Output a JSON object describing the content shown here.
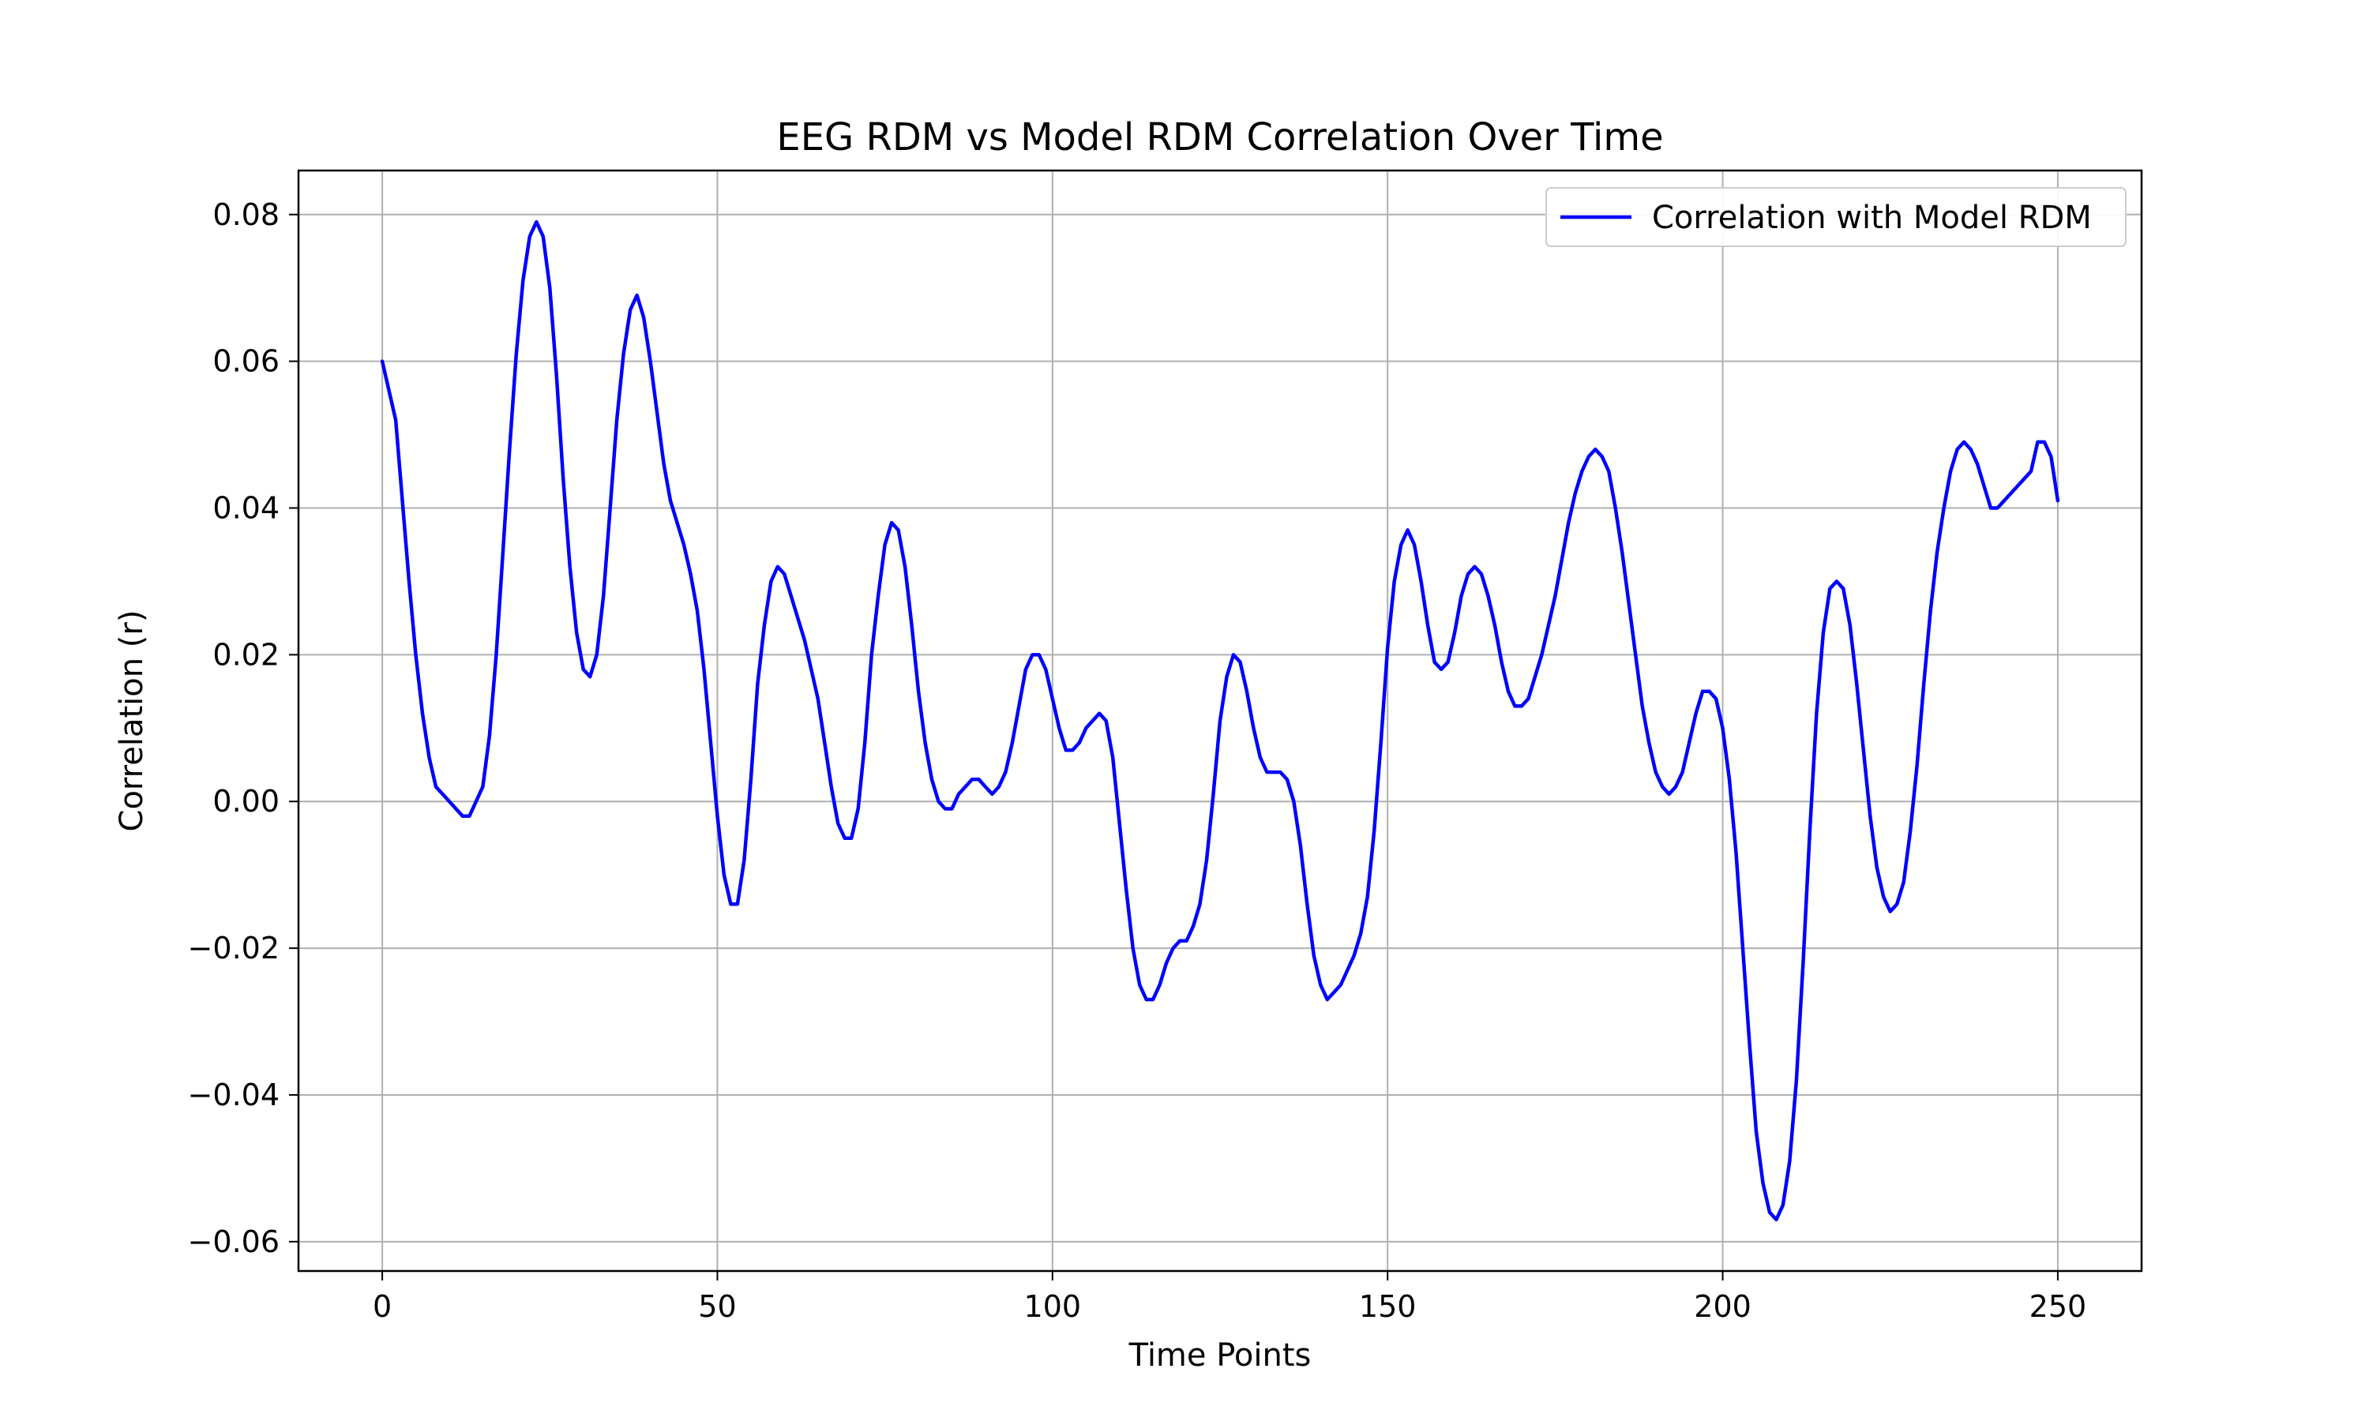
{
  "chart_data": {
    "type": "line",
    "title": "EEG RDM vs Model RDM Correlation Over Time",
    "xlabel": "Time Points",
    "ylabel": "Correlation (r)",
    "xlim": [
      -12.5,
      262.5
    ],
    "ylim": [
      -0.064,
      0.086
    ],
    "xticks": [
      0,
      50,
      100,
      150,
      200,
      250
    ],
    "xtick_labels": [
      "0",
      "50",
      "100",
      "150",
      "200",
      "250"
    ],
    "yticks": [
      -0.06,
      -0.04,
      -0.02,
      0.0,
      0.02,
      0.04,
      0.06,
      0.08
    ],
    "ytick_labels": [
      "−0.06",
      "−0.04",
      "−0.02",
      "0.00",
      "0.02",
      "0.04",
      "0.06",
      "0.08"
    ],
    "grid": true,
    "legend_position": "top-right",
    "series": [
      {
        "name": "Correlation with Model RDM",
        "color": "#0000ff",
        "points": [
          [
            0,
            0.06
          ],
          [
            2,
            0.052
          ],
          [
            4,
            0.03
          ],
          [
            5,
            0.02
          ],
          [
            6,
            0.012
          ],
          [
            7,
            0.006
          ],
          [
            8,
            0.002
          ],
          [
            10,
            0.0
          ],
          [
            12,
            -0.002
          ],
          [
            13,
            -0.002
          ],
          [
            14,
            0.0
          ],
          [
            15,
            0.002
          ],
          [
            16,
            0.009
          ],
          [
            17,
            0.02
          ],
          [
            18,
            0.034
          ],
          [
            19,
            0.048
          ],
          [
            20,
            0.061
          ],
          [
            21,
            0.071
          ],
          [
            22,
            0.077
          ],
          [
            23,
            0.079
          ],
          [
            24,
            0.077
          ],
          [
            25,
            0.07
          ],
          [
            26,
            0.058
          ],
          [
            27,
            0.044
          ],
          [
            28,
            0.032
          ],
          [
            29,
            0.023
          ],
          [
            30,
            0.018
          ],
          [
            31,
            0.017
          ],
          [
            32,
            0.02
          ],
          [
            33,
            0.028
          ],
          [
            34,
            0.04
          ],
          [
            35,
            0.052
          ],
          [
            36,
            0.061
          ],
          [
            37,
            0.067
          ],
          [
            38,
            0.069
          ],
          [
            39,
            0.066
          ],
          [
            40,
            0.06
          ],
          [
            41,
            0.053
          ],
          [
            42,
            0.046
          ],
          [
            43,
            0.041
          ],
          [
            44,
            0.038
          ],
          [
            45,
            0.035
          ],
          [
            46,
            0.031
          ],
          [
            47,
            0.026
          ],
          [
            48,
            0.018
          ],
          [
            49,
            0.008
          ],
          [
            50,
            -0.002
          ],
          [
            51,
            -0.01
          ],
          [
            52,
            -0.014
          ],
          [
            53,
            -0.014
          ],
          [
            54,
            -0.008
          ],
          [
            55,
            0.003
          ],
          [
            56,
            0.016
          ],
          [
            57,
            0.024
          ],
          [
            58,
            0.03
          ],
          [
            59,
            0.032
          ],
          [
            60,
            0.031
          ],
          [
            61,
            0.028
          ],
          [
            62,
            0.025
          ],
          [
            63,
            0.022
          ],
          [
            64,
            0.018
          ],
          [
            65,
            0.014
          ],
          [
            66,
            0.008
          ],
          [
            67,
            0.002
          ],
          [
            68,
            -0.003
          ],
          [
            69,
            -0.005
          ],
          [
            70,
            -0.005
          ],
          [
            71,
            -0.001
          ],
          [
            72,
            0.008
          ],
          [
            73,
            0.02
          ],
          [
            74,
            0.028
          ],
          [
            75,
            0.035
          ],
          [
            76,
            0.038
          ],
          [
            77,
            0.037
          ],
          [
            78,
            0.032
          ],
          [
            79,
            0.024
          ],
          [
            80,
            0.015
          ],
          [
            81,
            0.008
          ],
          [
            82,
            0.003
          ],
          [
            83,
            0.0
          ],
          [
            84,
            -0.001
          ],
          [
            85,
            -0.001
          ],
          [
            86,
            0.001
          ],
          [
            87,
            0.002
          ],
          [
            88,
            0.003
          ],
          [
            89,
            0.003
          ],
          [
            90,
            0.002
          ],
          [
            91,
            0.001
          ],
          [
            92,
            0.002
          ],
          [
            93,
            0.004
          ],
          [
            94,
            0.008
          ],
          [
            95,
            0.013
          ],
          [
            96,
            0.018
          ],
          [
            97,
            0.02
          ],
          [
            98,
            0.02
          ],
          [
            99,
            0.018
          ],
          [
            100,
            0.014
          ],
          [
            101,
            0.01
          ],
          [
            102,
            0.007
          ],
          [
            103,
            0.007
          ],
          [
            104,
            0.008
          ],
          [
            105,
            0.01
          ],
          [
            106,
            0.011
          ],
          [
            107,
            0.012
          ],
          [
            108,
            0.011
          ],
          [
            109,
            0.006
          ],
          [
            110,
            -0.003
          ],
          [
            111,
            -0.012
          ],
          [
            112,
            -0.02
          ],
          [
            113,
            -0.025
          ],
          [
            114,
            -0.027
          ],
          [
            115,
            -0.027
          ],
          [
            116,
            -0.025
          ],
          [
            117,
            -0.022
          ],
          [
            118,
            -0.02
          ],
          [
            119,
            -0.019
          ],
          [
            120,
            -0.019
          ],
          [
            121,
            -0.017
          ],
          [
            122,
            -0.014
          ],
          [
            123,
            -0.008
          ],
          [
            124,
            0.001
          ],
          [
            125,
            0.011
          ],
          [
            126,
            0.017
          ],
          [
            127,
            0.02
          ],
          [
            128,
            0.019
          ],
          [
            129,
            0.015
          ],
          [
            130,
            0.01
          ],
          [
            131,
            0.006
          ],
          [
            132,
            0.004
          ],
          [
            133,
            0.004
          ],
          [
            134,
            0.004
          ],
          [
            135,
            0.003
          ],
          [
            136,
            0.0
          ],
          [
            137,
            -0.006
          ],
          [
            138,
            -0.014
          ],
          [
            139,
            -0.021
          ],
          [
            140,
            -0.025
          ],
          [
            141,
            -0.027
          ],
          [
            142,
            -0.026
          ],
          [
            143,
            -0.025
          ],
          [
            144,
            -0.023
          ],
          [
            145,
            -0.021
          ],
          [
            146,
            -0.018
          ],
          [
            147,
            -0.013
          ],
          [
            148,
            -0.004
          ],
          [
            149,
            0.008
          ],
          [
            150,
            0.021
          ],
          [
            151,
            0.03
          ],
          [
            152,
            0.035
          ],
          [
            153,
            0.037
          ],
          [
            154,
            0.035
          ],
          [
            155,
            0.03
          ],
          [
            156,
            0.024
          ],
          [
            157,
            0.019
          ],
          [
            158,
            0.018
          ],
          [
            159,
            0.019
          ],
          [
            160,
            0.023
          ],
          [
            161,
            0.028
          ],
          [
            162,
            0.031
          ],
          [
            163,
            0.032
          ],
          [
            164,
            0.031
          ],
          [
            165,
            0.028
          ],
          [
            166,
            0.024
          ],
          [
            167,
            0.019
          ],
          [
            168,
            0.015
          ],
          [
            169,
            0.013
          ],
          [
            170,
            0.013
          ],
          [
            171,
            0.014
          ],
          [
            172,
            0.017
          ],
          [
            173,
            0.02
          ],
          [
            174,
            0.024
          ],
          [
            175,
            0.028
          ],
          [
            176,
            0.033
          ],
          [
            177,
            0.038
          ],
          [
            178,
            0.042
          ],
          [
            179,
            0.045
          ],
          [
            180,
            0.047
          ],
          [
            181,
            0.048
          ],
          [
            182,
            0.047
          ],
          [
            183,
            0.045
          ],
          [
            184,
            0.04
          ],
          [
            185,
            0.034
          ],
          [
            186,
            0.027
          ],
          [
            187,
            0.02
          ],
          [
            188,
            0.013
          ],
          [
            189,
            0.008
          ],
          [
            190,
            0.004
          ],
          [
            191,
            0.002
          ],
          [
            192,
            0.001
          ],
          [
            193,
            0.002
          ],
          [
            194,
            0.004
          ],
          [
            195,
            0.008
          ],
          [
            196,
            0.012
          ],
          [
            197,
            0.015
          ],
          [
            198,
            0.015
          ],
          [
            199,
            0.014
          ],
          [
            200,
            0.01
          ],
          [
            201,
            0.003
          ],
          [
            202,
            -0.007
          ],
          [
            203,
            -0.02
          ],
          [
            204,
            -0.033
          ],
          [
            205,
            -0.045
          ],
          [
            206,
            -0.052
          ],
          [
            207,
            -0.056
          ],
          [
            208,
            -0.057
          ],
          [
            209,
            -0.055
          ],
          [
            210,
            -0.049
          ],
          [
            211,
            -0.038
          ],
          [
            212,
            -0.022
          ],
          [
            213,
            -0.004
          ],
          [
            214,
            0.012
          ],
          [
            215,
            0.023
          ],
          [
            216,
            0.029
          ],
          [
            217,
            0.03
          ],
          [
            218,
            0.029
          ],
          [
            219,
            0.024
          ],
          [
            220,
            0.016
          ],
          [
            221,
            0.007
          ],
          [
            222,
            -0.002
          ],
          [
            223,
            -0.009
          ],
          [
            224,
            -0.013
          ],
          [
            225,
            -0.015
          ],
          [
            226,
            -0.014
          ],
          [
            227,
            -0.011
          ],
          [
            228,
            -0.004
          ],
          [
            229,
            0.005
          ],
          [
            230,
            0.016
          ],
          [
            231,
            0.026
          ],
          [
            232,
            0.034
          ],
          [
            233,
            0.04
          ],
          [
            234,
            0.045
          ],
          [
            235,
            0.048
          ],
          [
            236,
            0.049
          ],
          [
            237,
            0.048
          ],
          [
            238,
            0.046
          ],
          [
            239,
            0.043
          ],
          [
            240,
            0.04
          ],
          [
            241,
            0.04
          ],
          [
            242,
            0.041
          ],
          [
            243,
            0.042
          ],
          [
            244,
            0.043
          ],
          [
            245,
            0.044
          ],
          [
            246,
            0.045
          ],
          [
            247,
            0.049
          ],
          [
            248,
            0.049
          ],
          [
            249,
            0.047
          ],
          [
            250,
            0.041
          ]
        ]
      }
    ]
  }
}
